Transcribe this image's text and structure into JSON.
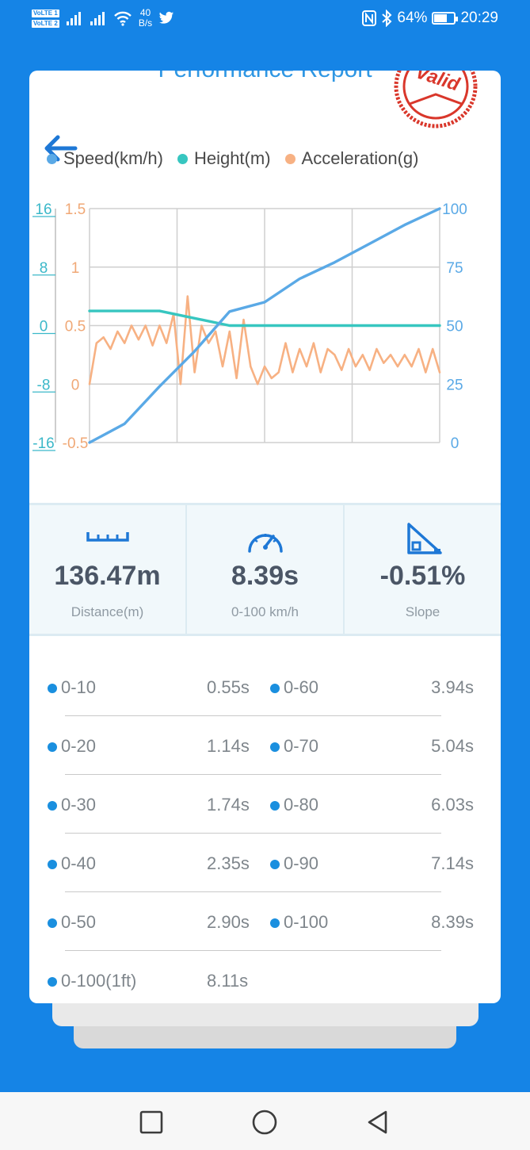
{
  "status_bar": {
    "volte1": "VoLTE 1",
    "volte2": "VoLTE 2",
    "net_speed_value": "40",
    "net_speed_unit": "B/s",
    "battery": "64%",
    "time": "20:29",
    "battery_level": 0.64
  },
  "report": {
    "title": "Performance Report",
    "stamp_text": "Valid"
  },
  "legend": [
    {
      "label": "Speed(km/h)",
      "color": "#5aa9e6"
    },
    {
      "label": "Height(m)",
      "color": "#37c6c0"
    },
    {
      "label": "Acceleration(g)",
      "color": "#f7b183"
    }
  ],
  "chart_data": {
    "type": "line",
    "series": [
      {
        "name": "Speed(km/h)",
        "axis": "right",
        "color": "#5aa9e6",
        "x": [
          0,
          10,
          20,
          30,
          40,
          50,
          60,
          70,
          80,
          90,
          100
        ],
        "values": [
          0,
          8,
          24,
          39,
          56,
          60,
          70,
          77,
          85,
          93,
          100
        ]
      },
      {
        "name": "Height(m)",
        "axis": "left-outer",
        "color": "#37c6c0",
        "x": [
          0,
          10,
          20,
          30,
          40,
          50,
          60,
          70,
          80,
          90,
          100
        ],
        "values": [
          2,
          2,
          2,
          1,
          0,
          0,
          0,
          0,
          0,
          0,
          0
        ]
      },
      {
        "name": "Acceleration(g)",
        "axis": "left-inner",
        "color": "#f7b183",
        "x": [
          0,
          2,
          4,
          6,
          8,
          10,
          12,
          14,
          16,
          18,
          20,
          22,
          24,
          26,
          28,
          30,
          32,
          34,
          36,
          38,
          40,
          42,
          44,
          46,
          48,
          50,
          52,
          54,
          56,
          58,
          60,
          62,
          64,
          66,
          68,
          70,
          72,
          74,
          76,
          78,
          80,
          82,
          84,
          86,
          88,
          90,
          92,
          94,
          96,
          98,
          100
        ],
        "values": [
          0.0,
          0.35,
          0.4,
          0.3,
          0.45,
          0.35,
          0.5,
          0.38,
          0.5,
          0.33,
          0.5,
          0.35,
          0.6,
          0.0,
          0.75,
          0.1,
          0.5,
          0.35,
          0.45,
          0.15,
          0.45,
          0.05,
          0.55,
          0.15,
          0.0,
          0.15,
          0.05,
          0.1,
          0.35,
          0.1,
          0.3,
          0.15,
          0.35,
          0.1,
          0.3,
          0.25,
          0.12,
          0.3,
          0.15,
          0.25,
          0.12,
          0.3,
          0.18,
          0.25,
          0.15,
          0.25,
          0.15,
          0.3,
          0.1,
          0.3,
          0.1
        ]
      }
    ],
    "x_range": [
      0,
      100
    ],
    "axes": {
      "left_outer": {
        "ticks": [
          "16",
          "8",
          "0",
          "-8",
          "-16"
        ],
        "range": [
          -16,
          16
        ],
        "color": "#3bb8c9"
      },
      "left_inner": {
        "ticks": [
          "1.5",
          "1",
          "0.5",
          "0",
          "-0.5"
        ],
        "range": [
          -0.5,
          1.5
        ],
        "color": "#f0a876"
      },
      "right": {
        "ticks": [
          "100",
          "75",
          "50",
          "25",
          "0"
        ],
        "range": [
          0,
          100
        ],
        "color": "#5aa9e6"
      }
    },
    "grid": true,
    "legend_position": "top"
  },
  "stats": [
    {
      "value": "136.47m",
      "label": "Distance(m)",
      "icon": "ruler-icon"
    },
    {
      "value": "8.39s",
      "label": "0-100 km/h",
      "icon": "speedometer-icon"
    },
    {
      "value": "-0.51%",
      "label": "Slope",
      "icon": "slope-icon"
    }
  ],
  "splits": [
    {
      "range_a": "0-10",
      "time_a": "0.55s",
      "range_b": "0-60",
      "time_b": "3.94s"
    },
    {
      "range_a": "0-20",
      "time_a": "1.14s",
      "range_b": "0-70",
      "time_b": "5.04s"
    },
    {
      "range_a": "0-30",
      "time_a": "1.74s",
      "range_b": "0-80",
      "time_b": "6.03s"
    },
    {
      "range_a": "0-40",
      "time_a": "2.35s",
      "range_b": "0-90",
      "time_b": "7.14s"
    },
    {
      "range_a": "0-50",
      "time_a": "2.90s",
      "range_b": "0-100",
      "time_b": "8.39s"
    },
    {
      "range_a": "0-100(1ft)",
      "time_a": "8.11s"
    }
  ],
  "colors": {
    "accent": "#1584e6",
    "bullet": "#1a8fdf",
    "stamp": "#d9372b"
  }
}
